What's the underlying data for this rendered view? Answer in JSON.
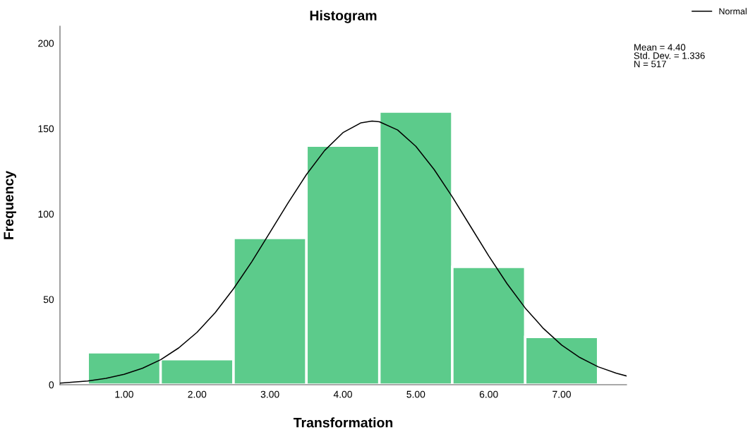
{
  "chart_data": {
    "type": "histogram",
    "title": "Histogram",
    "xlabel": "Transformation",
    "ylabel": "Frequency",
    "bins": [
      0.5,
      1.5,
      2.5,
      3.5,
      4.5,
      5.5,
      6.5,
      7.5
    ],
    "values": [
      19,
      15,
      86,
      140,
      160,
      69,
      28
    ],
    "color": "#5ccb8b",
    "xlim": [
      0.12,
      7.89
    ],
    "ylim": [
      0,
      210
    ],
    "xticks": [
      {
        "value": 1,
        "label": "1.00"
      },
      {
        "value": 2,
        "label": "2.00"
      },
      {
        "value": 3,
        "label": "3.00"
      },
      {
        "value": 4,
        "label": "4.00"
      },
      {
        "value": 5,
        "label": "5.00"
      },
      {
        "value": 6,
        "label": "6.00"
      },
      {
        "value": 7,
        "label": "7.00"
      }
    ],
    "yticks": [
      0,
      50,
      100,
      150,
      200
    ],
    "grid": false,
    "legend": "top right",
    "series": [
      {
        "name": "Normal",
        "type": "line",
        "color": "#000000",
        "line_style": "solid",
        "x": [
          0.12,
          0.5,
          0.75,
          1.0,
          1.25,
          1.5,
          1.75,
          2.0,
          2.25,
          2.5,
          2.75,
          3.0,
          3.25,
          3.5,
          3.75,
          4.0,
          4.25,
          4.4,
          4.5,
          4.75,
          5.0,
          5.25,
          5.5,
          5.75,
          6.0,
          6.25,
          6.5,
          6.75,
          7.0,
          7.25,
          7.5,
          7.75,
          7.89
        ],
        "values": [
          0.9,
          2.2,
          3.7,
          6.1,
          9.6,
          14.6,
          21.6,
          30.7,
          42.3,
          56.2,
          72.0,
          89.2,
          106.6,
          123.1,
          137.2,
          147.6,
          153.4,
          154.4,
          154.0,
          149.2,
          139.6,
          126.1,
          110.0,
          92.7,
          75.4,
          59.2,
          44.9,
          32.9,
          23.2,
          15.9,
          10.5,
          6.7,
          5.1
        ]
      }
    ],
    "annotations": [
      "Mean = 4.40\nStd. Dev. = 1.336\nN = 517"
    ]
  }
}
